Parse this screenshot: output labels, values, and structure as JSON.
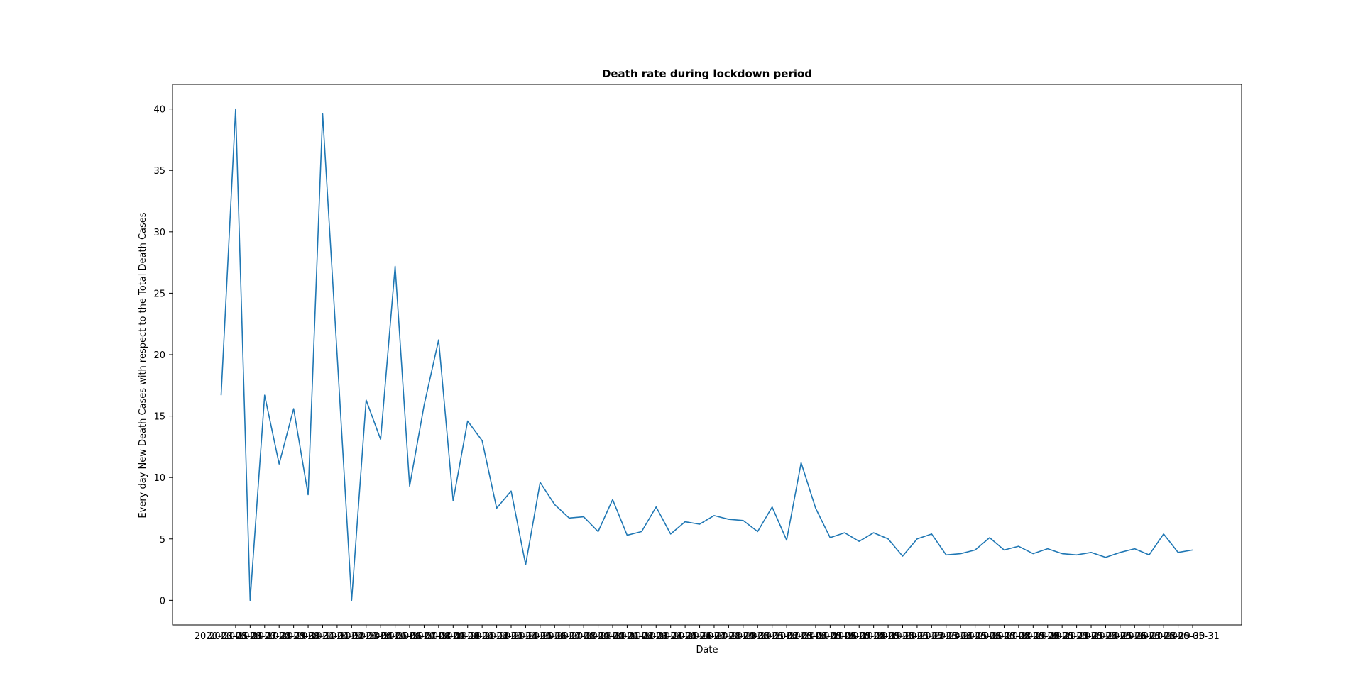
{
  "chart_data": {
    "type": "line",
    "title": "Death rate during lockdown period",
    "xlabel": "Date",
    "ylabel": "Every day New Death Cases with respect to the Total Death Cases",
    "x": [
      "2020-03-25",
      "2020-03-26",
      "2020-03-27",
      "2020-03-28",
      "2020-03-29",
      "2020-03-30",
      "2020-03-31",
      "2020-04-01",
      "2020-04-02",
      "2020-04-03",
      "2020-04-04",
      "2020-04-05",
      "2020-04-06",
      "2020-04-07",
      "2020-04-08",
      "2020-04-09",
      "2020-04-10",
      "2020-04-11",
      "2020-04-12",
      "2020-04-13",
      "2020-04-14",
      "2020-04-15",
      "2020-04-16",
      "2020-04-17",
      "2020-04-18",
      "2020-04-19",
      "2020-04-20",
      "2020-04-21",
      "2020-04-22",
      "2020-04-23",
      "2020-04-24",
      "2020-04-25",
      "2020-04-26",
      "2020-04-27",
      "2020-04-28",
      "2020-04-29",
      "2020-04-30",
      "2020-05-01",
      "2020-05-02",
      "2020-05-03",
      "2020-05-04",
      "2020-05-05",
      "2020-05-06",
      "2020-05-07",
      "2020-05-08",
      "2020-05-09",
      "2020-05-10",
      "2020-05-11",
      "2020-05-12",
      "2020-05-13",
      "2020-05-14",
      "2020-05-15",
      "2020-05-16",
      "2020-05-17",
      "2020-05-18",
      "2020-05-19",
      "2020-05-20",
      "2020-05-21",
      "2020-05-22",
      "2020-05-23",
      "2020-05-24",
      "2020-05-25",
      "2020-05-26",
      "2020-05-27",
      "2020-05-28",
      "2020-05-29",
      "2020-05-30",
      "2020-05-31"
    ],
    "series": [
      {
        "color": "#1f77b4",
        "values": [
          16.7,
          40.0,
          0.0,
          16.7,
          11.1,
          15.6,
          8.6,
          39.6,
          20.0,
          0.0,
          16.3,
          13.1,
          27.2,
          9.3,
          15.9,
          21.2,
          8.1,
          14.6,
          13.0,
          7.5,
          8.9,
          2.9,
          9.6,
          7.8,
          6.7,
          6.8,
          5.6,
          8.2,
          5.3,
          5.6,
          7.6,
          5.4,
          6.4,
          6.2,
          6.9,
          6.6,
          6.5,
          5.6,
          7.6,
          4.9,
          11.2,
          7.5,
          5.1,
          5.5,
          4.8,
          5.5,
          5.0,
          3.6,
          5.0,
          5.4,
          3.7,
          3.8,
          4.1,
          5.1,
          4.1,
          4.4,
          3.8,
          4.2,
          3.8,
          3.7,
          3.9,
          3.5,
          3.9,
          4.2,
          3.7,
          5.4,
          3.9,
          4.1
        ]
      }
    ],
    "ylim": [
      -2,
      42
    ],
    "yticks": [
      0,
      5,
      10,
      15,
      20,
      25,
      30,
      35,
      40
    ],
    "grid": false,
    "legend": "none"
  }
}
